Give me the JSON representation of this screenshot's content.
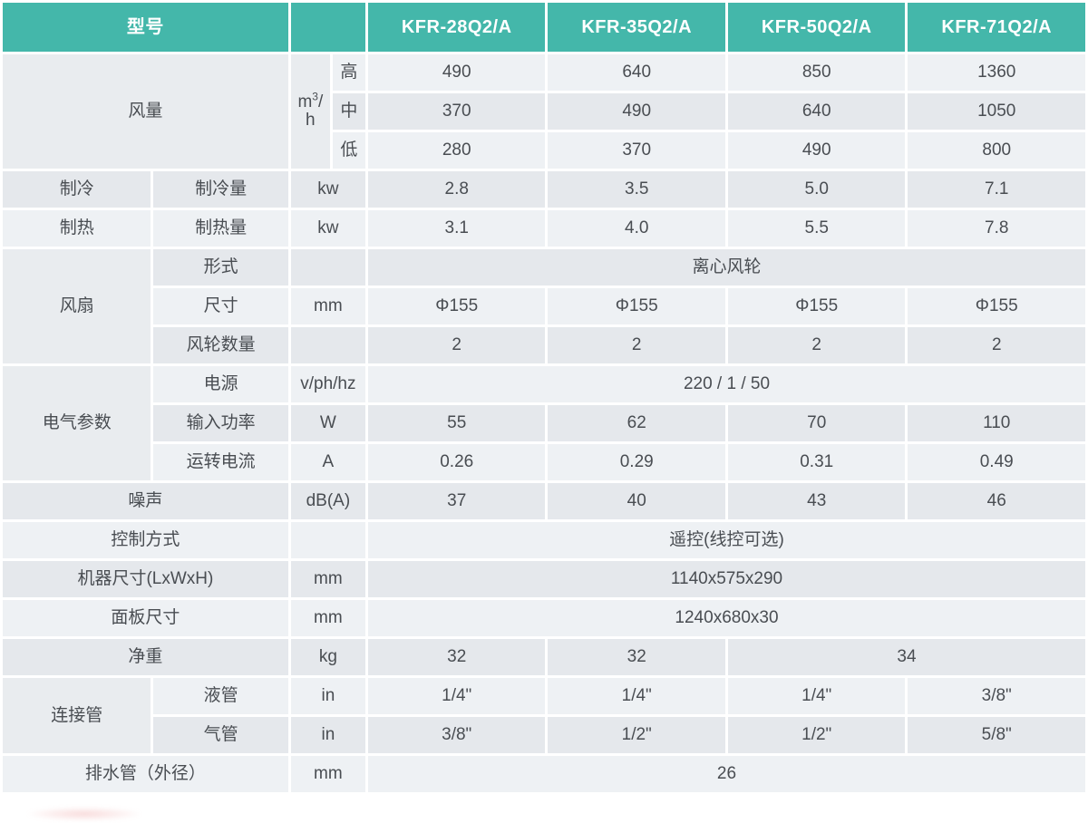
{
  "colors": {
    "accent": "#44b7aa",
    "row-light": "#eef1f4",
    "row-dark": "#e5e8ec",
    "group-cell": "#e9ecef",
    "text": "#494d52",
    "header-text": "#ffffff"
  },
  "spec": {
    "header": {
      "model_col_label": "型号",
      "models": [
        "KFR-28Q2/A",
        "KFR-35Q2/A",
        "KFR-50Q2/A",
        "KFR-71Q2/A"
      ]
    },
    "airflow": {
      "label": "风量",
      "unit": {
        "base": "m",
        "sup": "3",
        "tail": "/",
        "line2": "h"
      },
      "levels": [
        {
          "name": "高",
          "values": [
            "490",
            "640",
            "850",
            "1360"
          ]
        },
        {
          "name": "中",
          "values": [
            "370",
            "490",
            "640",
            "1050"
          ]
        },
        {
          "name": "低",
          "values": [
            "280",
            "370",
            "490",
            "800"
          ]
        }
      ]
    },
    "cooling": {
      "group": "制冷",
      "label": "制冷量",
      "unit": "kw",
      "values": [
        "2.8",
        "3.5",
        "5.0",
        "7.1"
      ]
    },
    "heating": {
      "group": "制热",
      "label": "制热量",
      "unit": "kw",
      "values": [
        "3.1",
        "4.0",
        "5.5",
        "7.8"
      ]
    },
    "fan": {
      "group": "风扇",
      "form": {
        "label": "形式",
        "value": "离心风轮"
      },
      "size": {
        "label": "尺寸",
        "unit": "mm",
        "values": [
          "Φ155",
          "Φ155",
          "Φ155",
          "Φ155"
        ]
      },
      "count": {
        "label": "风轮数量",
        "values": [
          "2",
          "2",
          "2",
          "2"
        ]
      }
    },
    "electrical": {
      "group": "电气参数",
      "power_supply": {
        "label": "电源",
        "unit": "v/ph/hz",
        "value": "220 / 1 / 50"
      },
      "input_power": {
        "label": "输入功率",
        "unit": "W",
        "values": [
          "55",
          "62",
          "70",
          "110"
        ]
      },
      "running_current": {
        "label": "运转电流",
        "unit": "A",
        "values": [
          "0.26",
          "0.29",
          "0.31",
          "0.49"
        ]
      }
    },
    "noise": {
      "label": "噪声",
      "unit": "dB(A)",
      "values": [
        "37",
        "40",
        "43",
        "46"
      ]
    },
    "control": {
      "label": "控制方式",
      "value": "遥控(线控可选)"
    },
    "machine_size": {
      "label": "机器尺寸(LxWxH)",
      "unit": "mm",
      "value": "1140x575x290"
    },
    "panel_size": {
      "label": "面板尺寸",
      "unit": "mm",
      "value": "1240x680x30"
    },
    "net_weight": {
      "label": "净重",
      "unit": "kg",
      "values": [
        "32",
        "32"
      ],
      "merged_last_two": "34"
    },
    "pipes": {
      "group": "连接管",
      "liquid": {
        "label": "液管",
        "unit": "in",
        "values": [
          "1/4\"",
          "1/4\"",
          "1/4\"",
          "3/8\""
        ]
      },
      "gas": {
        "label": "气管",
        "unit": "in",
        "values": [
          "3/8\"",
          "1/2\"",
          "1/2\"",
          "5/8\""
        ]
      }
    },
    "drain": {
      "label": "排水管（外径）",
      "unit": "mm",
      "value": "26"
    }
  }
}
